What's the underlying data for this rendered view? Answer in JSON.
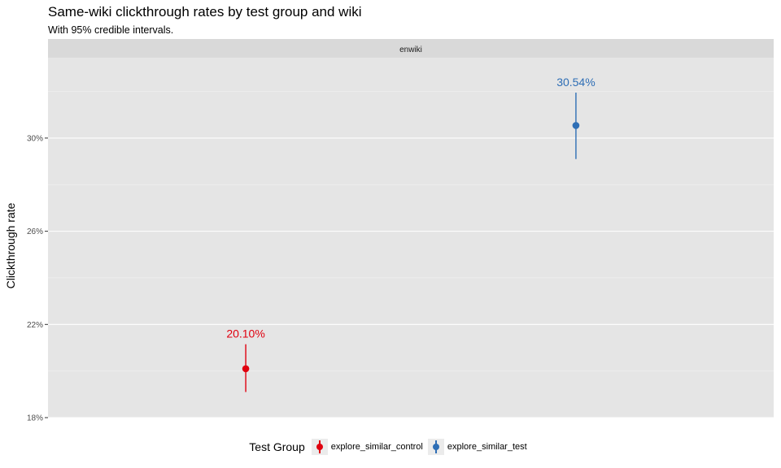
{
  "title": "Same-wiki clickthrough rates by test group and wiki",
  "subtitle": "With 95% credible intervals.",
  "chart_data": {
    "type": "scatter",
    "facet": "enwiki",
    "ylabel": "Clickthrough rate",
    "xlabel": "",
    "ylim": [
      0.18,
      0.3345
    ],
    "y_ticks": [
      0.18,
      0.22,
      0.26,
      0.3
    ],
    "y_tick_labels": [
      "18%",
      "22%",
      "26%",
      "30%"
    ],
    "grid": true,
    "legend_title": "Test Group",
    "legend_position": "bottom",
    "series": [
      {
        "name": "explore_similar_control",
        "color": "#E0000F",
        "point": 0.201,
        "lower": 0.191,
        "upper": 0.2115,
        "label": "20.10%"
      },
      {
        "name": "explore_similar_test",
        "color": "#2E6EB5",
        "point": 0.3054,
        "lower": 0.291,
        "upper": 0.3195,
        "label": "30.54%"
      }
    ]
  }
}
